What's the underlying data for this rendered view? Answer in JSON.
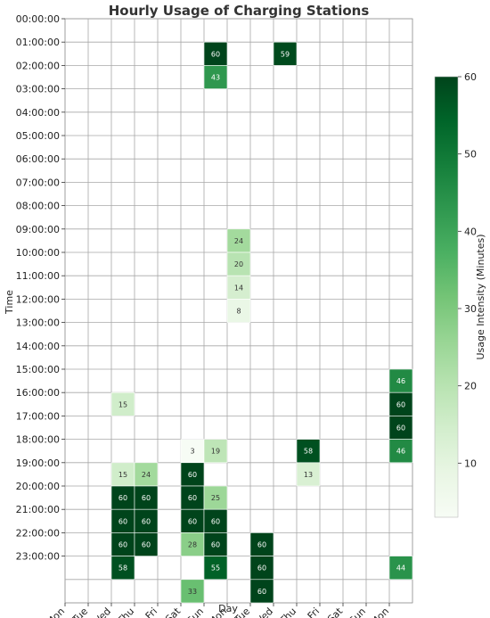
{
  "chart_data": {
    "type": "heatmap",
    "title": "Hourly Usage of Charging Stations",
    "xlabel": "Day",
    "ylabel": "Time",
    "x_categories": [
      "Mon",
      "Tue",
      "Wed",
      "Thu",
      "Fri",
      "Sat",
      "Sun",
      "Mon",
      "Tue",
      "Wed",
      "Thu",
      "Fri",
      "Sat",
      "Sun",
      "Mon"
    ],
    "y_categories": [
      "00:00:00",
      "01:00:00",
      "02:00:00",
      "03:00:00",
      "04:00:00",
      "05:00:00",
      "06:00:00",
      "07:00:00",
      "08:00:00",
      "09:00:00",
      "10:00:00",
      "11:00:00",
      "12:00:00",
      "13:00:00",
      "14:00:00",
      "15:00:00",
      "16:00:00",
      "17:00:00",
      "18:00:00",
      "19:00:00",
      "20:00:00",
      "21:00:00",
      "22:00:00",
      "23:00:00",
      ""
    ],
    "cells": [
      {
        "col": 6,
        "row": 1,
        "value": 60
      },
      {
        "col": 9,
        "row": 1,
        "value": 59
      },
      {
        "col": 6,
        "row": 2,
        "value": 43
      },
      {
        "col": 7,
        "row": 9,
        "value": 24
      },
      {
        "col": 7,
        "row": 10,
        "value": 20
      },
      {
        "col": 7,
        "row": 11,
        "value": 14
      },
      {
        "col": 7,
        "row": 12,
        "value": 8
      },
      {
        "col": 14,
        "row": 15,
        "value": 46
      },
      {
        "col": 2,
        "row": 16,
        "value": 15
      },
      {
        "col": 14,
        "row": 16,
        "value": 60
      },
      {
        "col": 14,
        "row": 17,
        "value": 60
      },
      {
        "col": 5,
        "row": 18,
        "value": 3
      },
      {
        "col": 6,
        "row": 18,
        "value": 19
      },
      {
        "col": 10,
        "row": 18,
        "value": 58
      },
      {
        "col": 14,
        "row": 18,
        "value": 46
      },
      {
        "col": 2,
        "row": 19,
        "value": 15
      },
      {
        "col": 3,
        "row": 19,
        "value": 24
      },
      {
        "col": 5,
        "row": 19,
        "value": 60
      },
      {
        "col": 10,
        "row": 19,
        "value": 13
      },
      {
        "col": 2,
        "row": 20,
        "value": 60
      },
      {
        "col": 3,
        "row": 20,
        "value": 60
      },
      {
        "col": 5,
        "row": 20,
        "value": 60
      },
      {
        "col": 6,
        "row": 20,
        "value": 25
      },
      {
        "col": 2,
        "row": 21,
        "value": 60
      },
      {
        "col": 3,
        "row": 21,
        "value": 60
      },
      {
        "col": 5,
        "row": 21,
        "value": 60
      },
      {
        "col": 6,
        "row": 21,
        "value": 60
      },
      {
        "col": 2,
        "row": 22,
        "value": 60
      },
      {
        "col": 3,
        "row": 22,
        "value": 60
      },
      {
        "col": 5,
        "row": 22,
        "value": 28
      },
      {
        "col": 6,
        "row": 22,
        "value": 60
      },
      {
        "col": 8,
        "row": 22,
        "value": 60
      },
      {
        "col": 2,
        "row": 23,
        "value": 58
      },
      {
        "col": 6,
        "row": 23,
        "value": 55
      },
      {
        "col": 8,
        "row": 23,
        "value": 60
      },
      {
        "col": 14,
        "row": 23,
        "value": 44
      },
      {
        "col": 5,
        "row": 24,
        "value": 33
      },
      {
        "col": 8,
        "row": 24,
        "value": 60
      }
    ],
    "colorbar": {
      "label": "Usage Intensity (Minutes)",
      "min": 3,
      "max": 60,
      "ticks": [
        10,
        20,
        30,
        40,
        50,
        60
      ],
      "colormap": "Greens",
      "color_low": "#f7fcf5",
      "color_high": "#00441b"
    },
    "grid": true
  }
}
